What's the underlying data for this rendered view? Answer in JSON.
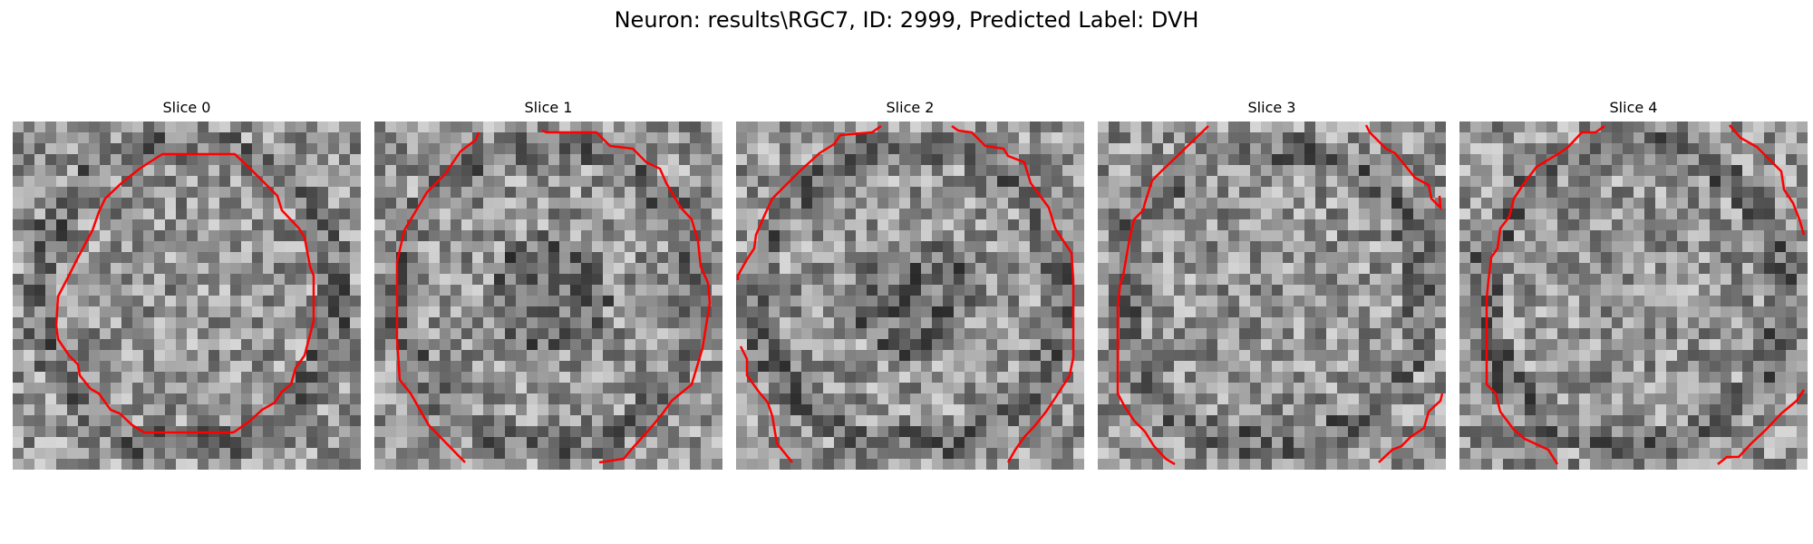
{
  "figure": {
    "title": "Neuron: results\\RGC7, ID: 2999, Predicted Label: DVH",
    "contour_color": "#ff0000"
  },
  "slices": [
    {
      "title": "Slice 0"
    },
    {
      "title": "Slice 1"
    },
    {
      "title": "Slice 2"
    },
    {
      "title": "Slice 3"
    },
    {
      "title": "Slice 4"
    }
  ]
}
